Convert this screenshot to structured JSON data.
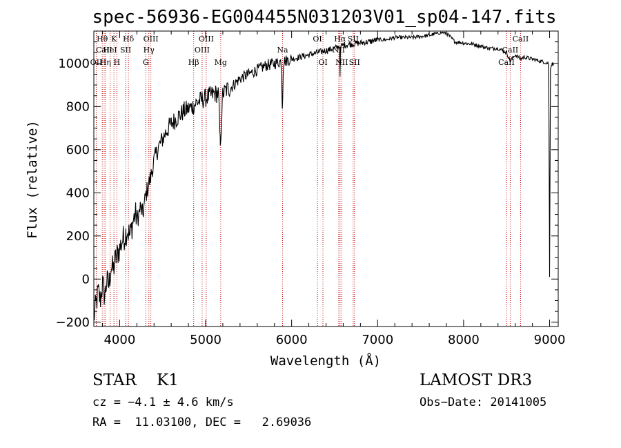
{
  "chart_data": {
    "type": "line",
    "title": "spec-56936-EG004455N031203V01_sp04-147.fits",
    "xlabel": "Wavelength (Å)",
    "ylabel": "Flux (relative)",
    "xlim": [
      3700,
      9100
    ],
    "ylim": [
      -220,
      1150
    ],
    "xticks": [
      4000,
      5000,
      6000,
      7000,
      8000,
      9000
    ],
    "yticks": [
      -200,
      0,
      200,
      400,
      600,
      800,
      1000
    ],
    "x_minor_step": 200,
    "y_minor_step": 50,
    "series": [
      {
        "name": "spectrum",
        "x": [
          3700,
          3725,
          3750,
          3775,
          3800,
          3825,
          3850,
          3875,
          3900,
          3925,
          3950,
          3975,
          4000,
          4030,
          4060,
          4090,
          4120,
          4150,
          4180,
          4210,
          4240,
          4270,
          4300,
          4330,
          4360,
          4400,
          4450,
          4500,
          4550,
          4600,
          4650,
          4700,
          4750,
          4800,
          4850,
          4900,
          4950,
          5000,
          5050,
          5100,
          5150,
          5170,
          5180,
          5200,
          5250,
          5300,
          5400,
          5500,
          5600,
          5700,
          5800,
          5880,
          5892,
          5905,
          6000,
          6100,
          6200,
          6300,
          6400,
          6500,
          6560,
          6563,
          6570,
          6600,
          6700,
          6800,
          6900,
          7000,
          7100,
          7200,
          7300,
          7400,
          7500,
          7600,
          7700,
          7750,
          7800,
          7850,
          7900,
          8000,
          8100,
          8200,
          8300,
          8400,
          8450,
          8500,
          8542,
          8600,
          8662,
          8700,
          8800,
          8900,
          8990,
          9000,
          9010,
          9030,
          9050
        ],
        "y": [
          -180,
          -120,
          -60,
          -100,
          -20,
          -80,
          -10,
          -30,
          60,
          40,
          90,
          120,
          140,
          180,
          200,
          230,
          200,
          260,
          300,
          280,
          330,
          300,
          380,
          430,
          470,
          550,
          610,
          650,
          690,
          720,
          740,
          760,
          780,
          790,
          800,
          820,
          830,
          840,
          850,
          860,
          860,
          620,
          700,
          860,
          880,
          890,
          930,
          950,
          970,
          990,
          1000,
          1010,
          790,
          1010,
          1020,
          1030,
          1040,
          1050,
          1060,
          1070,
          1080,
          940,
          1080,
          1085,
          1090,
          1095,
          1100,
          1110,
          1110,
          1120,
          1120,
          1120,
          1125,
          1130,
          1140,
          1145,
          1140,
          1120,
          1100,
          1095,
          1090,
          1080,
          1070,
          1070,
          1060,
          1050,
          1010,
          1040,
          1020,
          1030,
          1020,
          1010,
          1000,
          10,
          980,
          1000,
          990
        ]
      }
    ],
    "lines": [
      {
        "name": "Hθ",
        "wl": 3798,
        "row": 1
      },
      {
        "name": "CaII",
        "wl": 3820,
        "row": 2
      },
      {
        "name": "OII",
        "wl": 3728,
        "row": 3
      },
      {
        "name": "Hη",
        "wl": 3835,
        "row": 3
      },
      {
        "name": "HeI",
        "wl": 3889,
        "row": 2
      },
      {
        "name": "K",
        "wl": 3934,
        "row": 1
      },
      {
        "name": "H",
        "wl": 3968,
        "row": 3
      },
      {
        "name": "SII",
        "wl": 4070,
        "row": 2
      },
      {
        "name": "Hδ",
        "wl": 4102,
        "row": 1
      },
      {
        "name": "G",
        "wl": 4304,
        "row": 3
      },
      {
        "name": "Hγ",
        "wl": 4340,
        "row": 2
      },
      {
        "name": "OIII",
        "wl": 4363,
        "row": 1
      },
      {
        "name": "Hβ",
        "wl": 4861,
        "row": 3
      },
      {
        "name": "OIII",
        "wl": 4959,
        "row": 2
      },
      {
        "name": "OIII",
        "wl": 5007,
        "row": 1
      },
      {
        "name": "Mg",
        "wl": 5175,
        "row": 3
      },
      {
        "name": "Na",
        "wl": 5894,
        "row": 2
      },
      {
        "name": "OI",
        "wl": 6300,
        "row": 1
      },
      {
        "name": "OI",
        "wl": 6364,
        "row": 3
      },
      {
        "name": "NII",
        "wl": 6548,
        "row": 2
      },
      {
        "name": "Hα",
        "wl": 6563,
        "row": 1
      },
      {
        "name": "NII",
        "wl": 6583,
        "row": 3
      },
      {
        "name": "SII",
        "wl": 6716,
        "row": 1
      },
      {
        "name": "SII",
        "wl": 6731,
        "row": 3
      },
      {
        "name": "CaII",
        "wl": 8498,
        "row": 3
      },
      {
        "name": "CaII",
        "wl": 8542,
        "row": 2
      },
      {
        "name": "CaII",
        "wl": 8662,
        "row": 1
      }
    ]
  },
  "info": {
    "class_text": "STAR    K1",
    "cz_text": "cz = −4.1 ± 4.6 km/s",
    "radec_text": "RA =  11.03100, DEC =   2.69036",
    "survey_text": "LAMOST DR3",
    "obsdate_text": "Obs−Date: 20141005"
  },
  "colors": {
    "axis": "#000000",
    "spectrum": "#000000",
    "line_markers": "#c00000"
  }
}
